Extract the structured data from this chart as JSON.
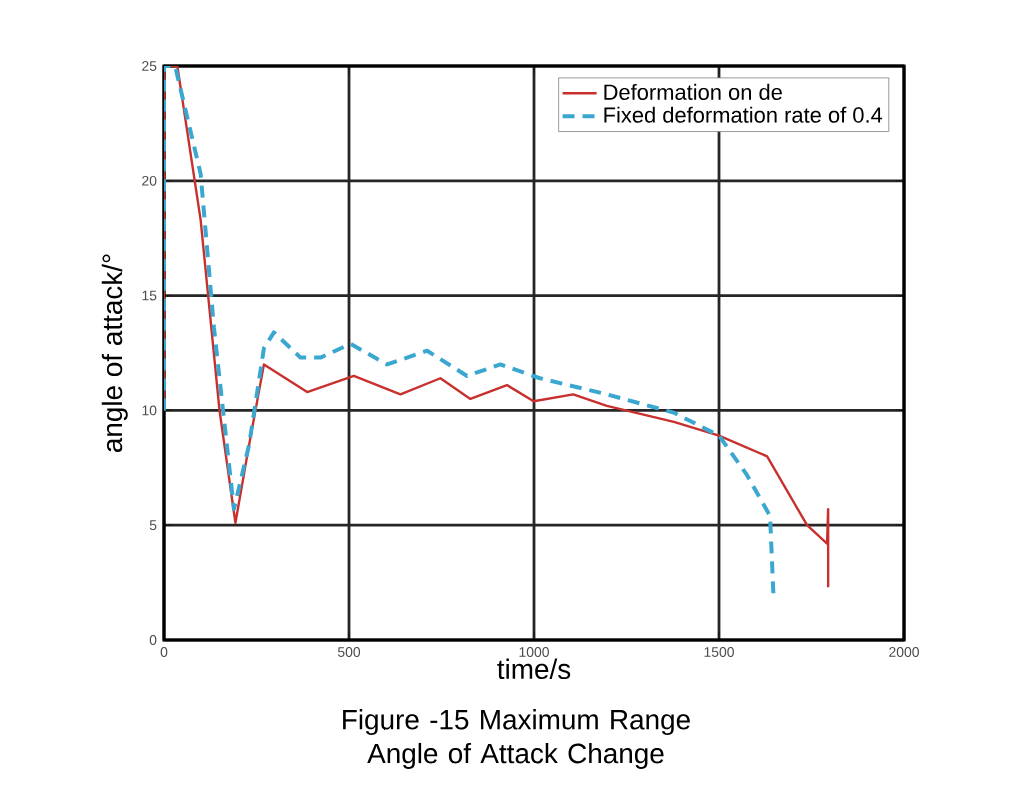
{
  "chart_data": {
    "type": "line",
    "title": "Figure -15 Maximum Range Angle of Attack Change",
    "xlabel": "time/s",
    "ylabel": "angle of attack/°",
    "xlim": [
      0,
      2000
    ],
    "ylim": [
      0,
      25
    ],
    "xticks": [
      0,
      500,
      1000,
      1500,
      2000
    ],
    "yticks": [
      0,
      5,
      10,
      15,
      20,
      25
    ],
    "grid": true,
    "legend": "top right",
    "series": [
      {
        "name": "Deformation on de",
        "color": "#c8302e",
        "line_style": "solid",
        "x": [
          0,
          0,
          36,
          99,
          150,
          193,
          230,
          270,
          387,
          513,
          639,
          747,
          828,
          927,
          999,
          1106,
          1197,
          1378,
          1500,
          1630,
          1738,
          1792,
          1795,
          1795
        ],
        "values": [
          10,
          25,
          25,
          18.3,
          10,
          5.1,
          8.5,
          12.0,
          10.8,
          11.5,
          10.7,
          11.4,
          10.5,
          11.1,
          10.4,
          10.7,
          10.2,
          9.5,
          8.9,
          8.0,
          5.0,
          4.2,
          5.7,
          2.3
        ]
      },
      {
        "name": "Fixed deformation rate of 0.4",
        "color": "#3aa7d0",
        "line_style": "dashed",
        "x": [
          0,
          0,
          30,
          99,
          135,
          189,
          230,
          270,
          297,
          369,
          423,
          504,
          603,
          711,
          819,
          909,
          1016,
          1197,
          1378,
          1500,
          1575,
          1638,
          1647
        ],
        "values": [
          10,
          25,
          25,
          20.3,
          13.6,
          5.7,
          8.5,
          12.7,
          13.4,
          12.3,
          12.3,
          12.9,
          12.0,
          12.6,
          11.5,
          12.0,
          11.4,
          10.7,
          9.9,
          8.9,
          7.2,
          5.4,
          2.0
        ]
      }
    ]
  }
}
